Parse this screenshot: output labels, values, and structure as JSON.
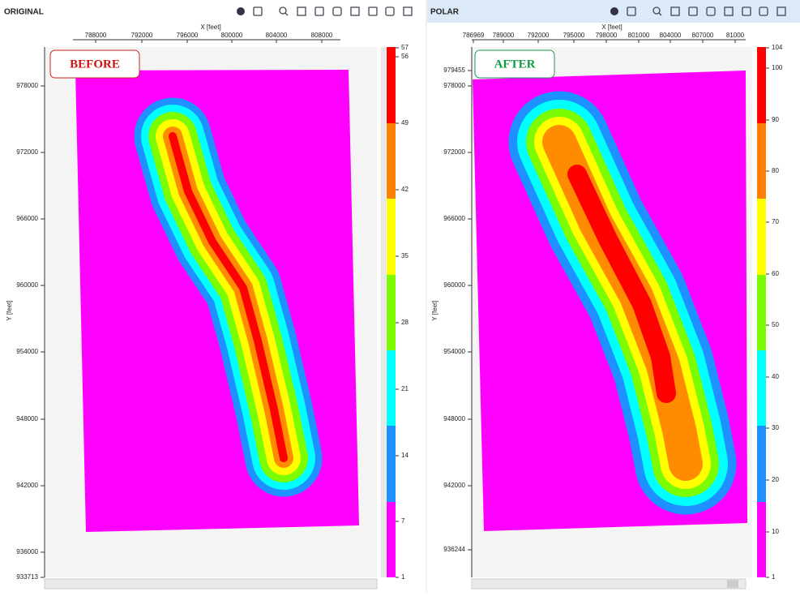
{
  "toolbar": {
    "left_title": "ORIGINAL",
    "right_title": "POLAR"
  },
  "panels": [
    {
      "badge": "BEFORE",
      "x_axis_label": "X [feet]",
      "y_axis_label": "Y [feet]",
      "xticks": [
        "788000",
        "792000",
        "796000",
        "800000",
        "804000",
        "808000"
      ],
      "yticks": [
        "978000",
        "972000",
        "966000",
        "960000",
        "954000",
        "948000",
        "942000",
        "936000",
        "933713"
      ],
      "colorbar_ticks": [
        "57",
        "56",
        "49",
        "42",
        "35",
        "28",
        "21",
        "14",
        "7",
        "1"
      ]
    },
    {
      "badge": "AFTER",
      "x_axis_label": "X [feet]",
      "y_axis_label": "Y [feet]",
      "xticks": [
        "786969",
        "789000",
        "792000",
        "795000",
        "798000",
        "801000",
        "804000",
        "807000",
        "81000"
      ],
      "yticks": [
        "979455",
        "978000",
        "972000",
        "966000",
        "960000",
        "954000",
        "948000",
        "942000",
        "936244"
      ],
      "colorbar_ticks": [
        "104",
        "100",
        "90",
        "80",
        "70",
        "60",
        "50",
        "40",
        "30",
        "20",
        "10",
        "1"
      ]
    }
  ]
}
